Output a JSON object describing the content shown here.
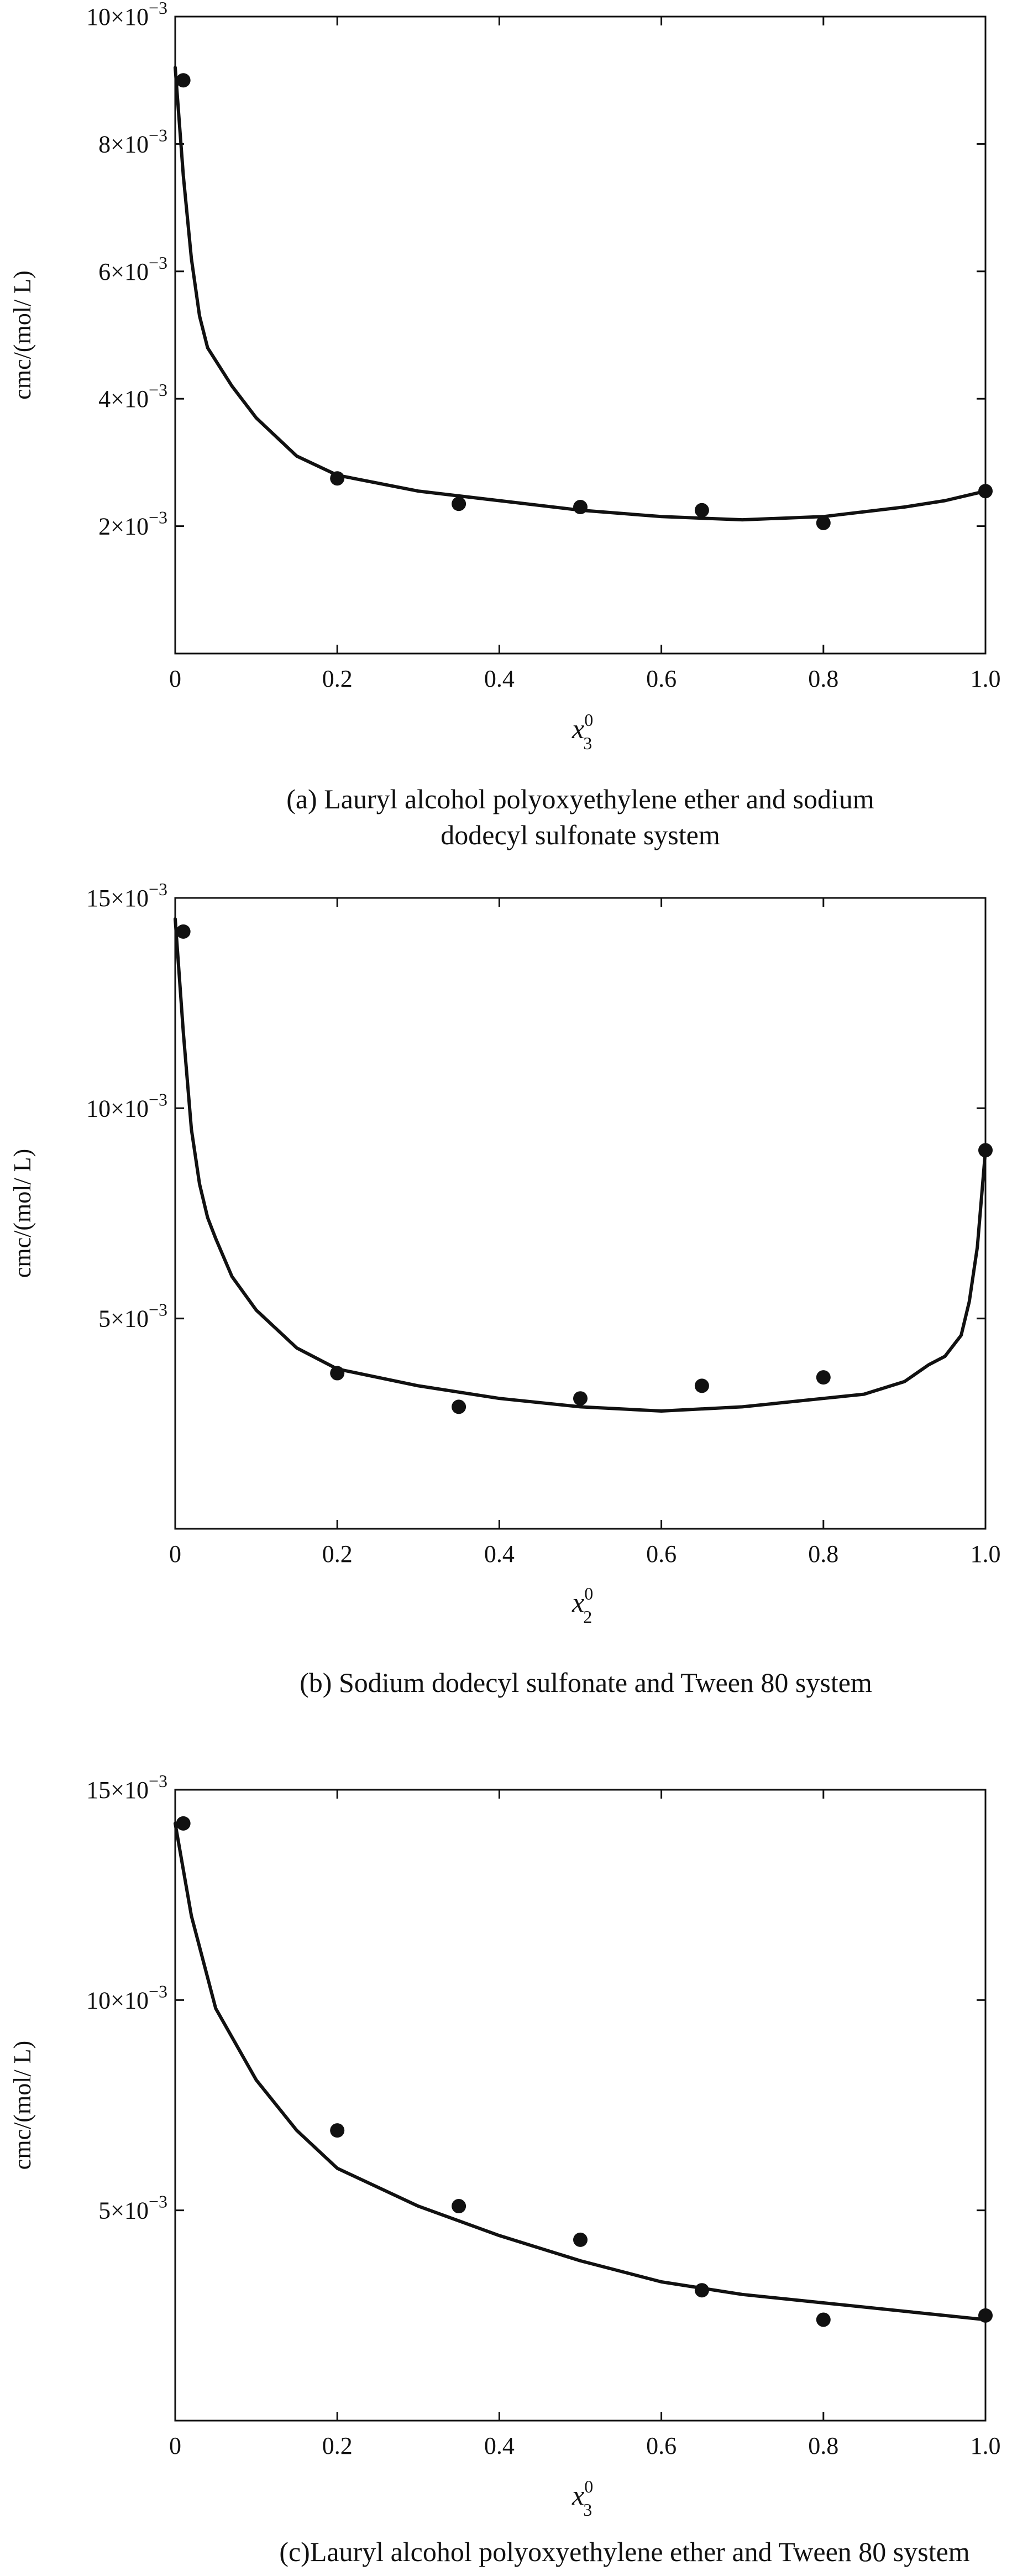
{
  "charts": [
    {
      "caption_lines": [
        "(a) Lauryl alcohol polyoxyethylene ether and sodium",
        "dodecyl sulfonate system"
      ]
    },
    {
      "caption_lines": [
        "(b) Sodium dodecyl sulfonate and Tween 80 system"
      ]
    },
    {
      "caption_lines": [
        "(c)Lauryl alcohol polyoxyethylene ether and Tween 80 system"
      ]
    }
  ],
  "chart_data": [
    {
      "type": "scatter",
      "title": "",
      "ylabel": "cmc/(mol/ L)",
      "xlabel": {
        "base": "x",
        "sub": "3",
        "sup": "0"
      },
      "xlim": [
        0,
        1
      ],
      "ylim": [
        0,
        0.01
      ],
      "x_ticks": [
        0,
        0.2,
        0.4,
        0.6,
        0.8,
        1.0
      ],
      "x_tick_labels": [
        "0",
        "0.2",
        "0.4",
        "0.6",
        "0.8",
        "1.0"
      ],
      "y_ticks": [
        0.002,
        0.004,
        0.006,
        0.008,
        0.01
      ],
      "y_tick_labels": [
        {
          "m": "2",
          "e": "−3"
        },
        {
          "m": "4",
          "e": "−3"
        },
        {
          "m": "6",
          "e": "−3"
        },
        {
          "m": "8",
          "e": "−3"
        },
        {
          "m": "10",
          "e": "−3"
        }
      ],
      "points": {
        "x": [
          0.01,
          0.2,
          0.35,
          0.5,
          0.65,
          0.8,
          1.0
        ],
        "y": [
          0.009,
          0.00275,
          0.00235,
          0.0023,
          0.00225,
          0.00205,
          0.00255
        ]
      },
      "curve": {
        "x": [
          0.0,
          0.01,
          0.02,
          0.03,
          0.04,
          0.05,
          0.07,
          0.1,
          0.15,
          0.2,
          0.3,
          0.4,
          0.5,
          0.6,
          0.7,
          0.8,
          0.9,
          0.95,
          1.0
        ],
        "y": [
          0.0092,
          0.0075,
          0.0062,
          0.0053,
          0.0048,
          0.0046,
          0.0042,
          0.0037,
          0.0031,
          0.0028,
          0.00255,
          0.0024,
          0.00225,
          0.00215,
          0.0021,
          0.00215,
          0.0023,
          0.0024,
          0.00255
        ]
      }
    },
    {
      "type": "scatter",
      "title": "",
      "ylabel": "cmc/(mol/ L)",
      "xlabel": {
        "base": "x",
        "sub": "2",
        "sup": "0"
      },
      "xlim": [
        0,
        1
      ],
      "ylim": [
        0,
        0.015
      ],
      "x_ticks": [
        0,
        0.2,
        0.4,
        0.6,
        0.8,
        1.0
      ],
      "x_tick_labels": [
        "0",
        "0.2",
        "0.4",
        "0.6",
        "0.8",
        "1.0"
      ],
      "y_ticks": [
        0.005,
        0.01,
        0.015
      ],
      "y_tick_labels": [
        {
          "m": "5",
          "e": "−3"
        },
        {
          "m": "10",
          "e": "−3"
        },
        {
          "m": "15",
          "e": "−3"
        }
      ],
      "points": {
        "x": [
          0.01,
          0.2,
          0.35,
          0.5,
          0.65,
          0.8,
          1.0
        ],
        "y": [
          0.0142,
          0.0037,
          0.0029,
          0.0031,
          0.0034,
          0.0036,
          0.009
        ]
      },
      "curve": {
        "x": [
          0.0,
          0.01,
          0.02,
          0.03,
          0.04,
          0.05,
          0.07,
          0.1,
          0.15,
          0.2,
          0.3,
          0.4,
          0.5,
          0.6,
          0.7,
          0.8,
          0.85,
          0.9,
          0.93,
          0.95,
          0.97,
          0.98,
          0.99,
          1.0
        ],
        "y": [
          0.0145,
          0.0118,
          0.0095,
          0.0082,
          0.0074,
          0.0069,
          0.006,
          0.0052,
          0.0043,
          0.0038,
          0.0034,
          0.0031,
          0.0029,
          0.0028,
          0.0029,
          0.0031,
          0.0032,
          0.0035,
          0.0039,
          0.0041,
          0.0046,
          0.0054,
          0.0067,
          0.009
        ]
      }
    },
    {
      "type": "scatter",
      "title": "",
      "ylabel": "cmc/(mol/ L)",
      "xlabel": {
        "base": "x",
        "sub": "3",
        "sup": "0"
      },
      "xlim": [
        0,
        1
      ],
      "ylim": [
        0,
        0.015
      ],
      "x_ticks": [
        0,
        0.2,
        0.4,
        0.6,
        0.8,
        1.0
      ],
      "x_tick_labels": [
        "0",
        "0.2",
        "0.4",
        "0.6",
        "0.8",
        "1.0"
      ],
      "y_ticks": [
        0.005,
        0.01,
        0.015
      ],
      "y_tick_labels": [
        {
          "m": "5",
          "e": "−3"
        },
        {
          "m": "10",
          "e": "−3"
        },
        {
          "m": "15",
          "e": "−3"
        }
      ],
      "points": {
        "x": [
          0.01,
          0.2,
          0.35,
          0.5,
          0.65,
          0.8,
          1.0
        ],
        "y": [
          0.0142,
          0.0069,
          0.0051,
          0.0043,
          0.0031,
          0.0024,
          0.0025
        ]
      },
      "curve": {
        "x": [
          0.0,
          0.02,
          0.05,
          0.1,
          0.15,
          0.2,
          0.3,
          0.4,
          0.5,
          0.6,
          0.7,
          0.8,
          0.9,
          1.0
        ],
        "y": [
          0.0142,
          0.012,
          0.0098,
          0.0081,
          0.0069,
          0.006,
          0.0051,
          0.0044,
          0.0038,
          0.0033,
          0.003,
          0.0028,
          0.0026,
          0.0024
        ]
      }
    }
  ]
}
